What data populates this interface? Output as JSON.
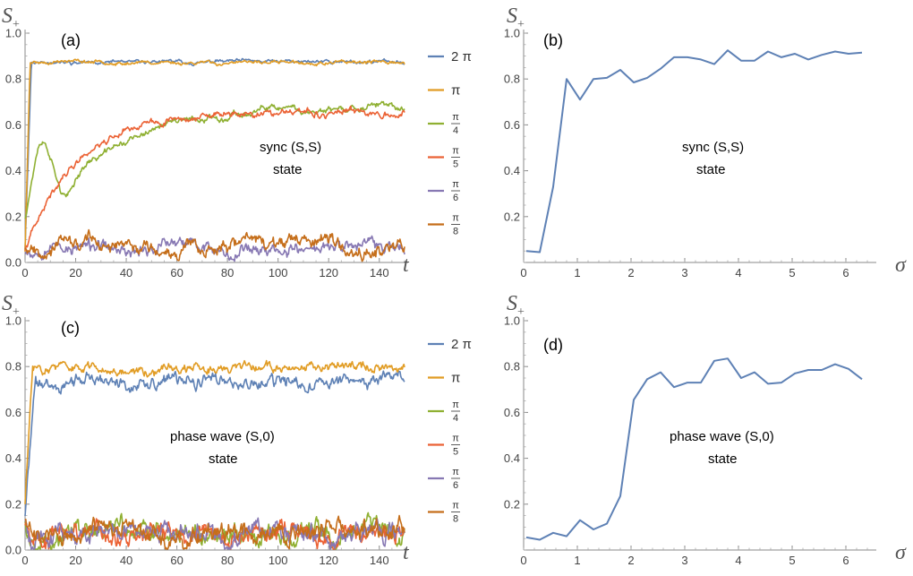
{
  "chart_data": [
    {
      "id": "a",
      "type": "line",
      "panel_label": "(a)",
      "xlabel": "t",
      "ylabel": "S",
      "ylabel_sub": "+",
      "xlim": [
        0,
        150
      ],
      "ylim": [
        0,
        1.0
      ],
      "xticks": [
        "0",
        "20",
        "40",
        "60",
        "80",
        "100",
        "120",
        "140"
      ],
      "yticks": [
        "0.0",
        "0.2",
        "0.4",
        "0.6",
        "0.8",
        "1.0"
      ],
      "annotation": [
        "sync (S,S)",
        "state"
      ],
      "series": [
        {
          "name": "2 π",
          "color": "#5E81B5",
          "model": {
            "y0": 0.06,
            "plateau": 0.875,
            "rise_t": 2.5,
            "amp": 0.008,
            "seed": 11
          }
        },
        {
          "name": "π",
          "color": "#E19C24",
          "model": {
            "y0": 0.05,
            "plateau": 0.872,
            "rise_t": 2.0,
            "amp": 0.008,
            "seed": 23
          }
        },
        {
          "name": "π/4",
          "color": "#8FB032",
          "model": {
            "y0": 0.08,
            "bump": 0.5,
            "plateau": 0.675,
            "tau": 28,
            "amp": 0.015,
            "seed": 37
          }
        },
        {
          "name": "π/5",
          "color": "#EB6235",
          "model": {
            "y0": 0.05,
            "plateau": 0.655,
            "tau": 20,
            "amp": 0.015,
            "seed": 41
          }
        },
        {
          "name": "π/6",
          "color": "#8778B3",
          "model": {
            "y0": 0.06,
            "mean": 0.065,
            "amp": 0.03,
            "seed": 53
          }
        },
        {
          "name": "π/8",
          "color": "#C56E1A",
          "model": {
            "y0": 0.07,
            "mean": 0.075,
            "amp": 0.03,
            "seed": 67
          }
        }
      ]
    },
    {
      "id": "b",
      "type": "line",
      "panel_label": "(b)",
      "xlabel": "σ",
      "ylabel": "S",
      "ylabel_sub": "+",
      "xlim": [
        0,
        6.5
      ],
      "ylim": [
        0,
        1.0
      ],
      "xticks": [
        "0",
        "1",
        "2",
        "3",
        "4",
        "5",
        "6"
      ],
      "yticks": [
        "0.2",
        "0.4",
        "0.6",
        "0.8",
        "1.0"
      ],
      "annotation": [
        "sync (S,S)",
        "state"
      ],
      "series": [
        {
          "name": "S+",
          "color": "#5E81B5",
          "x": [
            0.05,
            0.3,
            0.55,
            0.8,
            1.05,
            1.3,
            1.55,
            1.8,
            2.05,
            2.3,
            2.55,
            2.8,
            3.05,
            3.3,
            3.55,
            3.8,
            4.05,
            4.3,
            4.55,
            4.8,
            5.05,
            5.3,
            5.55,
            5.8,
            6.05,
            6.3
          ],
          "y": [
            0.05,
            0.045,
            0.33,
            0.8,
            0.71,
            0.8,
            0.805,
            0.84,
            0.785,
            0.805,
            0.845,
            0.895,
            0.895,
            0.885,
            0.865,
            0.925,
            0.88,
            0.88,
            0.92,
            0.895,
            0.91,
            0.885,
            0.905,
            0.92,
            0.91,
            0.915
          ]
        }
      ]
    },
    {
      "id": "c",
      "type": "line",
      "panel_label": "(c)",
      "xlabel": "t",
      "ylabel": "S",
      "ylabel_sub": "+",
      "xlim": [
        0,
        150
      ],
      "ylim": [
        0,
        1.0
      ],
      "xticks": [
        "0",
        "20",
        "40",
        "60",
        "80",
        "100",
        "120",
        "140"
      ],
      "yticks": [
        "0.0",
        "0.2",
        "0.4",
        "0.6",
        "0.8",
        "1.0"
      ],
      "annotation": [
        "phase wave (S,0)",
        "state"
      ],
      "series": [
        {
          "name": "2 π",
          "color": "#5E81B5",
          "model": {
            "y0": 0.15,
            "plateau": 0.735,
            "rise_t": 4.0,
            "amp": 0.03,
            "seed": 71
          }
        },
        {
          "name": "π",
          "color": "#E19C24",
          "model": {
            "y0": 0.2,
            "plateau": 0.795,
            "rise_t": 3.0,
            "amp": 0.022,
            "seed": 83
          }
        },
        {
          "name": "π/4",
          "color": "#8FB032",
          "model": {
            "y0": 0.15,
            "mean": 0.075,
            "amp": 0.045,
            "seed": 97
          }
        },
        {
          "name": "π/5",
          "color": "#EB6235",
          "model": {
            "y0": 0.12,
            "mean": 0.07,
            "amp": 0.045,
            "seed": 101
          }
        },
        {
          "name": "π/6",
          "color": "#8778B3",
          "model": {
            "y0": 0.14,
            "mean": 0.07,
            "amp": 0.045,
            "seed": 113
          }
        },
        {
          "name": "π/8",
          "color": "#C56E1A",
          "model": {
            "y0": 0.13,
            "mean": 0.075,
            "amp": 0.045,
            "seed": 127
          }
        }
      ]
    },
    {
      "id": "d",
      "type": "line",
      "panel_label": "(d)",
      "xlabel": "σ",
      "ylabel": "S",
      "ylabel_sub": "+",
      "xlim": [
        0,
        6.5
      ],
      "ylim": [
        0,
        1.0
      ],
      "xticks": [
        "0",
        "1",
        "2",
        "3",
        "4",
        "5",
        "6"
      ],
      "yticks": [
        "0.2",
        "0.4",
        "0.6",
        "0.8",
        "1.0"
      ],
      "annotation": [
        "phase wave (S,0)",
        "state"
      ],
      "series": [
        {
          "name": "S+",
          "color": "#5E81B5",
          "x": [
            0.05,
            0.3,
            0.55,
            0.8,
            1.05,
            1.3,
            1.55,
            1.8,
            2.05,
            2.3,
            2.55,
            2.8,
            3.05,
            3.3,
            3.55,
            3.8,
            4.05,
            4.3,
            4.55,
            4.8,
            5.05,
            5.3,
            5.55,
            5.8,
            6.05,
            6.3
          ],
          "y": [
            0.055,
            0.045,
            0.075,
            0.06,
            0.13,
            0.09,
            0.115,
            0.235,
            0.655,
            0.745,
            0.775,
            0.71,
            0.73,
            0.73,
            0.825,
            0.835,
            0.75,
            0.775,
            0.725,
            0.73,
            0.77,
            0.785,
            0.785,
            0.81,
            0.79,
            0.745
          ]
        }
      ]
    }
  ]
}
